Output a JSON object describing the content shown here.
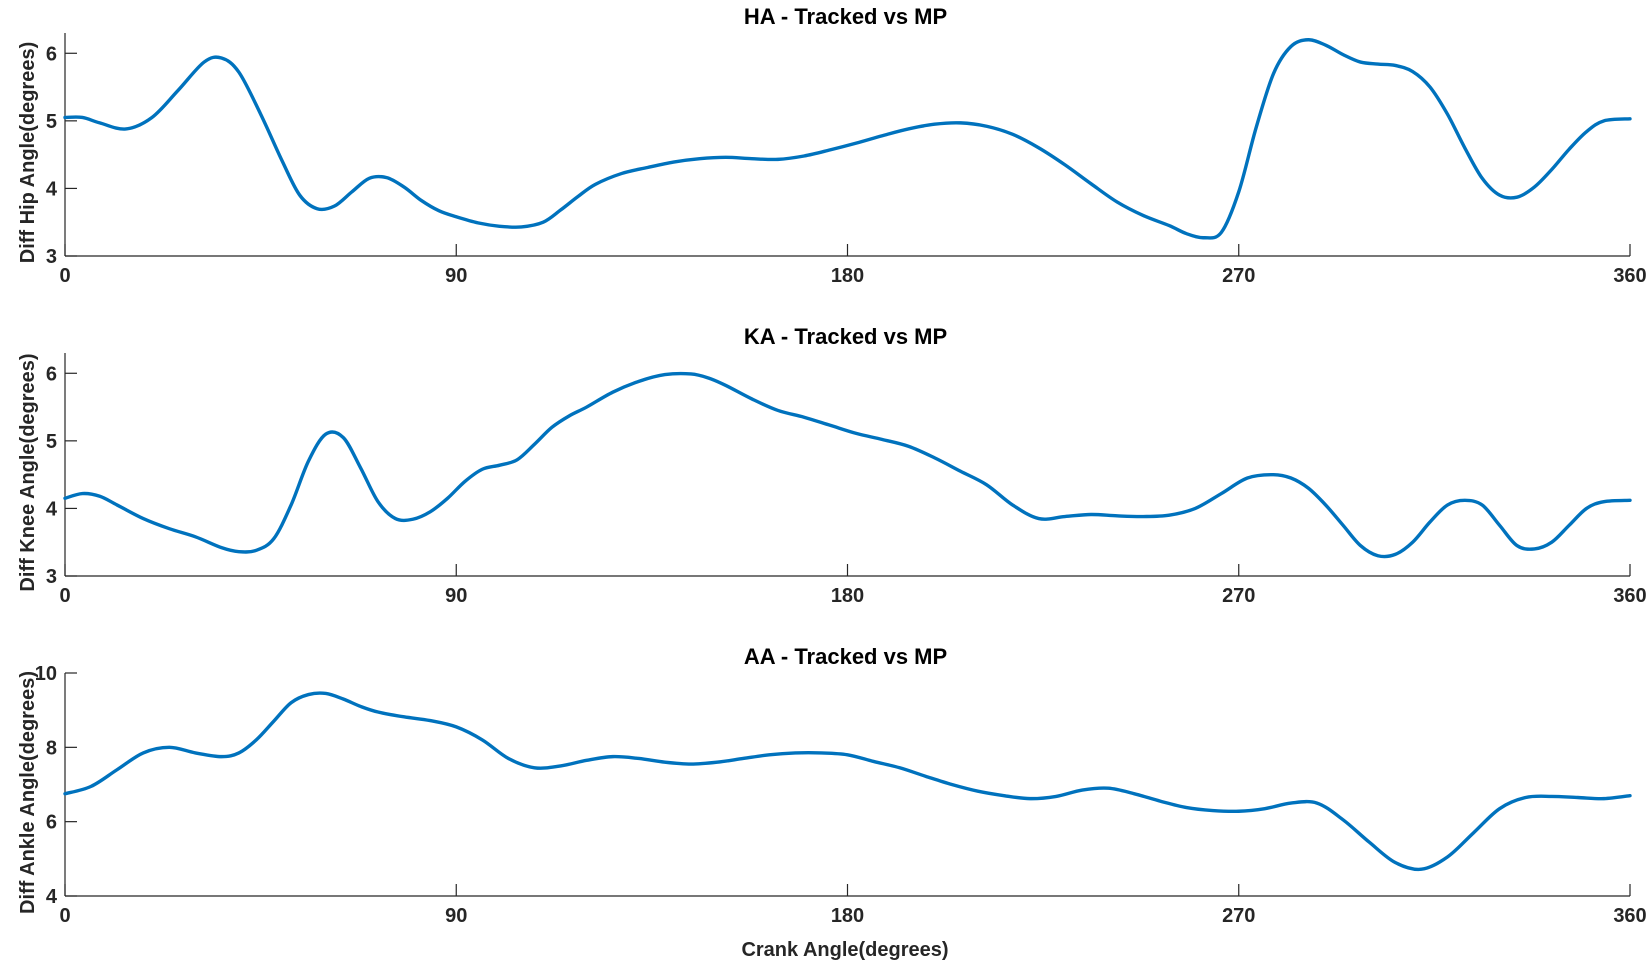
{
  "figure": {
    "xlabel": "Crank Angle(degrees)"
  },
  "chart_data": [
    {
      "type": "line",
      "title": "HA - Tracked vs MP",
      "ylabel": "Diff Hip Angle(degrees)",
      "xlim": [
        0,
        360
      ],
      "ylim": [
        3,
        6.3
      ],
      "xticks": [
        0,
        90,
        180,
        270,
        360
      ],
      "yticks": [
        3,
        4,
        5,
        6
      ],
      "line_color": "#0072BD",
      "series": [
        {
          "x": [
            0,
            4,
            8,
            14,
            20,
            26,
            32,
            36,
            40,
            45,
            50,
            54,
            58,
            62,
            66,
            70,
            74,
            78,
            82,
            86,
            90,
            95,
            100,
            105,
            110,
            114,
            118,
            122,
            128,
            134,
            140,
            146,
            152,
            158,
            164,
            170,
            176,
            182,
            188,
            194,
            200,
            206,
            212,
            218,
            224,
            230,
            236,
            242,
            248,
            254,
            258,
            262,
            266,
            270,
            274,
            278,
            282,
            286,
            290,
            294,
            298,
            302,
            306,
            310,
            314,
            318,
            322,
            326,
            330,
            334,
            338,
            342,
            346,
            350,
            354,
            360
          ],
          "y": [
            5.05,
            5.05,
            4.97,
            4.88,
            5.05,
            5.45,
            5.87,
            5.93,
            5.72,
            5.1,
            4.4,
            3.9,
            3.7,
            3.74,
            3.95,
            4.15,
            4.16,
            4.02,
            3.82,
            3.67,
            3.58,
            3.49,
            3.44,
            3.43,
            3.5,
            3.68,
            3.88,
            4.06,
            4.22,
            4.31,
            4.39,
            4.44,
            4.46,
            4.44,
            4.43,
            4.48,
            4.57,
            4.67,
            4.78,
            4.88,
            4.95,
            4.97,
            4.92,
            4.8,
            4.6,
            4.35,
            4.07,
            3.8,
            3.6,
            3.45,
            3.33,
            3.27,
            3.35,
            3.95,
            4.9,
            5.7,
            6.1,
            6.2,
            6.12,
            5.98,
            5.87,
            5.84,
            5.82,
            5.73,
            5.5,
            5.1,
            4.6,
            4.15,
            3.9,
            3.87,
            4.02,
            4.28,
            4.58,
            4.84,
            5.0,
            5.03
          ]
        }
      ]
    },
    {
      "type": "line",
      "title": "KA - Tracked vs MP",
      "ylabel": "Diff Knee Angle(degrees)",
      "xlim": [
        0,
        360
      ],
      "ylim": [
        3,
        6.3
      ],
      "xticks": [
        0,
        90,
        180,
        270,
        360
      ],
      "yticks": [
        3,
        4,
        5,
        6
      ],
      "line_color": "#0072BD",
      "series": [
        {
          "x": [
            0,
            4,
            8,
            12,
            18,
            24,
            30,
            36,
            40,
            44,
            48,
            52,
            56,
            60,
            64,
            68,
            72,
            76,
            80,
            84,
            88,
            92,
            96,
            100,
            104,
            108,
            112,
            116,
            120,
            126,
            132,
            138,
            144,
            148,
            152,
            158,
            164,
            170,
            176,
            182,
            188,
            194,
            200,
            206,
            212,
            218,
            224,
            230,
            236,
            242,
            248,
            254,
            260,
            266,
            272,
            278,
            282,
            286,
            290,
            294,
            298,
            302,
            306,
            310,
            314,
            318,
            322,
            326,
            330,
            334,
            338,
            342,
            346,
            350,
            354,
            360
          ],
          "y": [
            4.15,
            4.22,
            4.18,
            4.05,
            3.85,
            3.7,
            3.58,
            3.42,
            3.36,
            3.38,
            3.55,
            4.05,
            4.7,
            5.1,
            5.05,
            4.6,
            4.1,
            3.85,
            3.84,
            3.95,
            4.15,
            4.4,
            4.58,
            4.64,
            4.72,
            4.95,
            5.2,
            5.37,
            5.5,
            5.72,
            5.88,
            5.98,
            5.99,
            5.93,
            5.82,
            5.62,
            5.45,
            5.35,
            5.23,
            5.11,
            5.02,
            4.92,
            4.75,
            4.55,
            4.35,
            4.05,
            3.85,
            3.88,
            3.91,
            3.89,
            3.88,
            3.9,
            4.0,
            4.22,
            4.45,
            4.5,
            4.45,
            4.3,
            4.05,
            3.75,
            3.45,
            3.3,
            3.32,
            3.5,
            3.8,
            4.05,
            4.12,
            4.05,
            3.75,
            3.45,
            3.4,
            3.5,
            3.75,
            4.0,
            4.1,
            4.12
          ]
        }
      ]
    },
    {
      "type": "line",
      "title": "AA - Tracked vs MP",
      "ylabel": "Diff Ankle Angle(degrees)",
      "xlabel": "Crank Angle(degrees)",
      "xlim": [
        0,
        360
      ],
      "ylim": [
        4,
        10
      ],
      "xticks": [
        0,
        90,
        180,
        270,
        360
      ],
      "yticks": [
        4,
        6,
        8,
        10
      ],
      "line_color": "#0072BD",
      "series": [
        {
          "x": [
            0,
            6,
            12,
            18,
            24,
            30,
            36,
            40,
            44,
            48,
            52,
            56,
            60,
            64,
            68,
            72,
            78,
            84,
            90,
            96,
            102,
            108,
            114,
            120,
            126,
            132,
            138,
            144,
            150,
            156,
            162,
            168,
            174,
            180,
            186,
            192,
            198,
            204,
            210,
            216,
            222,
            228,
            234,
            240,
            246,
            252,
            258,
            264,
            270,
            276,
            282,
            288,
            294,
            300,
            306,
            312,
            318,
            324,
            330,
            336,
            342,
            348,
            354,
            360
          ],
          "y": [
            6.75,
            6.95,
            7.4,
            7.85,
            8.0,
            7.85,
            7.75,
            7.85,
            8.2,
            8.7,
            9.2,
            9.42,
            9.45,
            9.3,
            9.1,
            8.95,
            8.82,
            8.72,
            8.55,
            8.2,
            7.7,
            7.45,
            7.5,
            7.65,
            7.75,
            7.7,
            7.6,
            7.55,
            7.6,
            7.7,
            7.8,
            7.85,
            7.85,
            7.8,
            7.62,
            7.45,
            7.22,
            7.0,
            6.82,
            6.7,
            6.62,
            6.68,
            6.85,
            6.9,
            6.75,
            6.55,
            6.38,
            6.3,
            6.28,
            6.35,
            6.5,
            6.5,
            6.05,
            5.45,
            4.9,
            4.72,
            5.05,
            5.7,
            6.35,
            6.65,
            6.68,
            6.65,
            6.62,
            6.7
          ]
        }
      ]
    }
  ]
}
